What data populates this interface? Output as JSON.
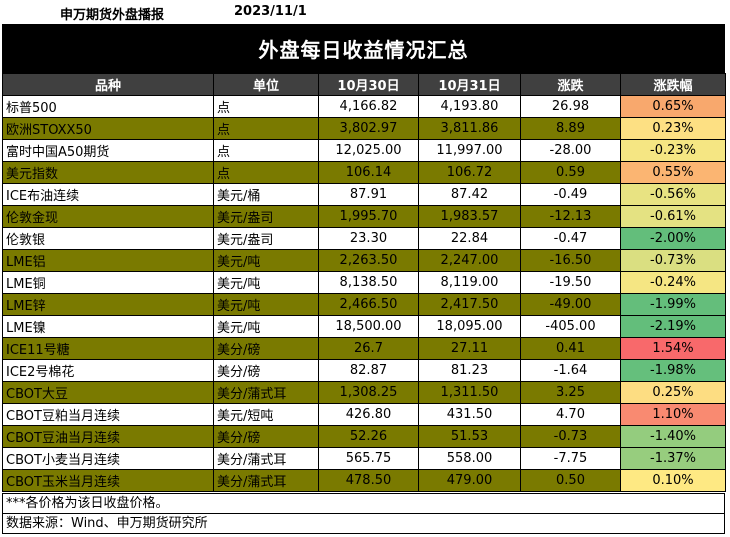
{
  "header": {
    "brand": "申万期货外盘播报",
    "date": "2023/11/1"
  },
  "title": "外盘每日收益情况汇总",
  "columns": [
    "品种",
    "单位",
    "10月30日",
    "10月31日",
    "涨跌",
    "涨跌幅"
  ],
  "rows": [
    {
      "name": "标普500",
      "unit": "点",
      "d30": "4,166.82",
      "d31": "4,193.80",
      "chg": "26.98",
      "pct": "0.65%",
      "color": "#f8a86d"
    },
    {
      "name": "欧洲STOXX50",
      "unit": "点",
      "d30": "3,802.97",
      "d31": "3,811.86",
      "chg": "8.89",
      "pct": "0.23%",
      "color": "#fde083"
    },
    {
      "name": "富时中国A50期货",
      "unit": "点",
      "d30": "12,025.00",
      "d31": "11,997.00",
      "chg": "-28.00",
      "pct": "-0.23%",
      "color": "#f5e683"
    },
    {
      "name": "美元指数",
      "unit": "点",
      "d30": "106.14",
      "d31": "106.72",
      "chg": "0.59",
      "pct": "0.55%",
      "color": "#fbb572"
    },
    {
      "name": "ICE布油连续",
      "unit": "美元/桶",
      "d30": "87.91",
      "d31": "87.42",
      "chg": "-0.49",
      "pct": "-0.56%",
      "color": "#e8e382"
    },
    {
      "name": "伦敦金现",
      "unit": "美元/盎司",
      "d30": "1,995.70",
      "d31": "1,983.57",
      "chg": "-12.13",
      "pct": "-0.61%",
      "color": "#e4e282"
    },
    {
      "name": "伦敦银",
      "unit": "美元/盎司",
      "d30": "23.30",
      "d31": "22.84",
      "chg": "-0.47",
      "pct": "-2.00%",
      "color": "#63be7b"
    },
    {
      "name": "LME铝",
      "unit": "美元/吨",
      "d30": "2,263.50",
      "d31": "2,247.00",
      "chg": "-16.50",
      "pct": "-0.73%",
      "color": "#dadf81"
    },
    {
      "name": "LME铜",
      "unit": "美元/吨",
      "d30": "8,138.50",
      "d31": "8,119.00",
      "chg": "-19.50",
      "pct": "-0.24%",
      "color": "#f5e683"
    },
    {
      "name": "LME锌",
      "unit": "美元/吨",
      "d30": "2,466.50",
      "d31": "2,417.50",
      "chg": "-49.00",
      "pct": "-1.99%",
      "color": "#64be7b"
    },
    {
      "name": "LME镍",
      "unit": "美元/吨",
      "d30": "18,500.00",
      "d31": "18,095.00",
      "chg": "-405.00",
      "pct": "-2.19%",
      "color": "#63be7b"
    },
    {
      "name": "ICE11号糖",
      "unit": "美分/磅",
      "d30": "26.7",
      "d31": "27.11",
      "chg": "0.41",
      "pct": "1.54%",
      "color": "#f8696b"
    },
    {
      "name": "ICE2号棉花",
      "unit": "美分/磅",
      "d30": "82.87",
      "d31": "81.23",
      "chg": "-1.64",
      "pct": "-1.98%",
      "color": "#65bf7c"
    },
    {
      "name": "CBOT大豆",
      "unit": "美分/蒲式耳",
      "d30": "1,308.25",
      "d31": "1,311.50",
      "chg": "3.25",
      "pct": "0.25%",
      "color": "#fddd82"
    },
    {
      "name": "CBOT豆粕当月连续",
      "unit": "美元/短吨",
      "d30": "426.80",
      "d31": "431.50",
      "chg": "4.70",
      "pct": "1.10%",
      "color": "#f98a71"
    },
    {
      "name": "CBOT豆油当月连续",
      "unit": "美分/磅",
      "d30": "52.26",
      "d31": "51.53",
      "chg": "-0.73",
      "pct": "-1.40%",
      "color": "#94cc7e"
    },
    {
      "name": "CBOT小麦当月连续",
      "unit": "美分/蒲式耳",
      "d30": "565.75",
      "d31": "558.00",
      "chg": "-7.75",
      "pct": "-1.37%",
      "color": "#97cd7e"
    },
    {
      "name": "CBOT玉米当月连续",
      "unit": "美分/蒲式耳",
      "d30": "478.50",
      "d31": "479.00",
      "chg": "0.50",
      "pct": "0.10%",
      "color": "#fee983"
    }
  ],
  "notes": [
    "***各价格为该日收盘价格。",
    "数据来源：Wind、申万期货研究所"
  ]
}
